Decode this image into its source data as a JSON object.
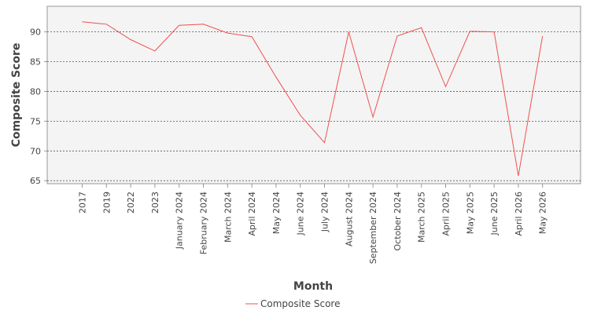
{
  "chart_data": {
    "type": "line",
    "xlabel": "Month",
    "ylabel": "Composite Score",
    "ylim": [
      64.5,
      94.3
    ],
    "yticks": [
      65,
      70,
      75,
      80,
      85,
      90
    ],
    "grid": true,
    "legend_position": "bottom",
    "categories": [
      "2017",
      "2019",
      "2022",
      "2023",
      "January 2024",
      "February 2024",
      "March 2024",
      "April 2024",
      "May 2024",
      "June 2024",
      "July 2024",
      "August 2024",
      "September 2024",
      "October 2024",
      "March 2025",
      "April 2025",
      "May 2025",
      "June 2025",
      "April 2026",
      "May 2026"
    ],
    "series": [
      {
        "name": "Composite Score",
        "color": "#f05050",
        "values": [
          91.7,
          91.3,
          88.7,
          86.8,
          91.1,
          91.3,
          89.8,
          89.2,
          82.4,
          76.0,
          71.4,
          90.0,
          75.7,
          89.3,
          90.7,
          80.8,
          90.1,
          90.0,
          65.8,
          89.3
        ]
      }
    ]
  }
}
